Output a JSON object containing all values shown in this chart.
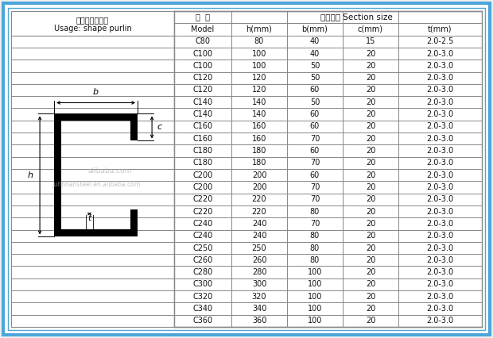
{
  "title_cn": "主要用途：橩条",
  "title_en": "Usage: shape purlin",
  "section_title": "断面尺寸 Section size",
  "col_headers_left": [
    "型  号",
    "Model"
  ],
  "col_headers_right": [
    "h(mm)",
    "b(mm)",
    "c(mm)",
    "t(mm)"
  ],
  "rows": [
    [
      "C80",
      "80",
      "40",
      "15",
      "2.0-2.5"
    ],
    [
      "C100",
      "100",
      "40",
      "20",
      "2.0-3.0"
    ],
    [
      "C100",
      "100",
      "50",
      "20",
      "2.0-3.0"
    ],
    [
      "C120",
      "120",
      "50",
      "20",
      "2.0-3.0"
    ],
    [
      "C120",
      "120",
      "60",
      "20",
      "2.0-3.0"
    ],
    [
      "C140",
      "140",
      "50",
      "20",
      "2.0-3.0"
    ],
    [
      "C140",
      "140",
      "60",
      "20",
      "2.0-3.0"
    ],
    [
      "C160",
      "160",
      "60",
      "20",
      "2.0-3.0"
    ],
    [
      "C160",
      "160",
      "70",
      "20",
      "2.0-3.0"
    ],
    [
      "C180",
      "180",
      "60",
      "20",
      "2.0-3.0"
    ],
    [
      "C180",
      "180",
      "70",
      "20",
      "2.0-3.0"
    ],
    [
      "C200",
      "200",
      "60",
      "20",
      "2.0-3.0"
    ],
    [
      "C200",
      "200",
      "70",
      "20",
      "2.0-3.0"
    ],
    [
      "C220",
      "220",
      "70",
      "20",
      "2.0-3.0"
    ],
    [
      "C220",
      "220",
      "80",
      "20",
      "2.0-3.0"
    ],
    [
      "C240",
      "240",
      "70",
      "20",
      "2.0-3.0"
    ],
    [
      "C240",
      "240",
      "80",
      "20",
      "2.0-3.0"
    ],
    [
      "C250",
      "250",
      "80",
      "20",
      "2.0-3.0"
    ],
    [
      "C260",
      "260",
      "80",
      "20",
      "2.0-3.0"
    ],
    [
      "C280",
      "280",
      "100",
      "20",
      "2.0-3.0"
    ],
    [
      "C300",
      "300",
      "100",
      "20",
      "2.0-3.0"
    ],
    [
      "C320",
      "320",
      "100",
      "20",
      "2.0-3.0"
    ],
    [
      "C340",
      "340",
      "100",
      "20",
      "2.0-3.0"
    ],
    [
      "C360",
      "360",
      "100",
      "20",
      "2.0-3.0"
    ]
  ],
  "outer_border_color": "#4da6d9",
  "grid_color": "#888888",
  "text_color": "#111111",
  "bg_color": "#f0f0f0",
  "white": "#ffffff",
  "watermark1": "alibaba.com",
  "watermark2": "junnnansteel.en.alibaba.com",
  "diagram_label_b": "b",
  "diagram_label_c": "c",
  "diagram_label_h": "h",
  "diagram_label_t": "t"
}
